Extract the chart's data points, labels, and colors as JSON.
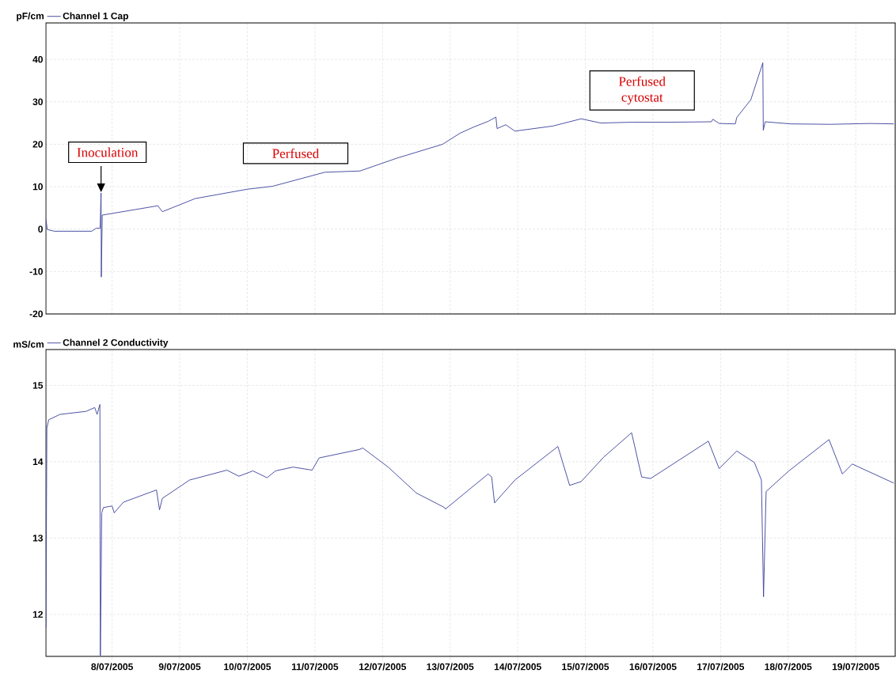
{
  "chart_data": [
    {
      "type": "line",
      "ylabel": "pF/cm",
      "legend": "top left",
      "grid": true,
      "tick_labels": "y",
      "xlim": [
        "2005-07-07T00:30",
        "2005-07-19T14:00"
      ],
      "ylim": [
        -20,
        48.6
      ],
      "yticks": [
        -20,
        -10,
        0,
        10,
        20,
        30,
        40
      ],
      "xticks": [
        {
          "value": "2005-07-08",
          "label": null
        },
        {
          "value": "2005-07-09",
          "label": null
        },
        {
          "value": "2005-07-10",
          "label": null
        },
        {
          "value": "2005-07-11",
          "label": null
        },
        {
          "value": "2005-07-12",
          "label": null
        },
        {
          "value": "2005-07-13",
          "label": null
        },
        {
          "value": "2005-07-14",
          "label": null
        },
        {
          "value": "2005-07-15",
          "label": null
        },
        {
          "value": "2005-07-16",
          "label": null
        },
        {
          "value": "2005-07-17",
          "label": null
        },
        {
          "value": "2005-07-18",
          "label": null
        },
        {
          "value": "2005-07-19",
          "label": null
        }
      ],
      "x": [
        "2005-07-07T00:30",
        "2005-07-07T01:00",
        "2005-07-07T03:30",
        "2005-07-07T16:45",
        "2005-07-07T18:20",
        "2005-07-07T19:45",
        "2005-07-07T20:05",
        "2005-07-07T20:10",
        "2005-07-07T20:30",
        "2005-07-08T16:15",
        "2005-07-08T17:50",
        "2005-07-09T05:30",
        "2005-07-10T00:00",
        "2005-07-10T09:00",
        "2005-07-11T03:30",
        "2005-07-11T16:00",
        "2005-07-12T05:00",
        "2005-07-12T21:20",
        "2005-07-13T03:30",
        "2005-07-13T08:30",
        "2005-07-13T13:30",
        "2005-07-13T16:15",
        "2005-07-13T16:40",
        "2005-07-13T19:45",
        "2005-07-13T23:00",
        "2005-07-14T12:30",
        "2005-07-14T22:30",
        "2005-07-15T05:30",
        "2005-07-15T16:45",
        "2005-07-16T06:45",
        "2005-07-16T20:45",
        "2005-07-16T21:15",
        "2005-07-16T23:30",
        "2005-07-17T05:15",
        "2005-07-17T05:45",
        "2005-07-17T10:45",
        "2005-07-17T15:00",
        "2005-07-17T15:10",
        "2005-07-17T15:50",
        "2005-07-18T00:50",
        "2005-07-18T15:00",
        "2005-07-19T05:00",
        "2005-07-19T13:30"
      ],
      "series": [
        {
          "name": "Channel 1 Cap",
          "color": "#3a3f9a",
          "values": [
            2.3,
            -0.1,
            -0.5,
            -0.5,
            0.2,
            0.2,
            8.5,
            -11.3,
            3.3,
            5.5,
            4.1,
            7.2,
            9.4,
            10.1,
            13.4,
            13.7,
            16.7,
            20.0,
            22.6,
            24.1,
            25.4,
            26.4,
            23.7,
            24.6,
            23.1,
            24.3,
            26.0,
            25.0,
            25.2,
            25.2,
            25.3,
            25.9,
            24.9,
            24.8,
            26.3,
            30.5,
            39.2,
            23.3,
            25.3,
            24.8,
            24.7,
            24.9,
            24.8
          ]
        }
      ],
      "annotations": [
        {
          "text": "Inoculation",
          "x": "2005-07-07T20:05",
          "y": 8.5
        },
        "Perfused",
        "Perfused cytostat"
      ]
    },
    {
      "type": "line",
      "ylabel": "mS/cm",
      "legend": "top left",
      "grid": true,
      "xlim": [
        "2005-07-07T00:30",
        "2005-07-19T14:00"
      ],
      "ylim": [
        11.45,
        15.47
      ],
      "yticks": [
        12,
        13,
        14,
        15
      ],
      "xticks": [
        {
          "value": "2005-07-08",
          "label": "8/07/2005"
        },
        {
          "value": "2005-07-09",
          "label": "9/07/2005"
        },
        {
          "value": "2005-07-10",
          "label": "10/07/2005"
        },
        {
          "value": "2005-07-11",
          "label": "11/07/2005"
        },
        {
          "value": "2005-07-12",
          "label": "12/07/2005"
        },
        {
          "value": "2005-07-13",
          "label": "13/07/2005"
        },
        {
          "value": "2005-07-14",
          "label": "14/07/2005"
        },
        {
          "value": "2005-07-15",
          "label": "15/07/2005"
        },
        {
          "value": "2005-07-16",
          "label": "16/07/2005"
        },
        {
          "value": "2005-07-17",
          "label": "17/07/2005"
        },
        {
          "value": "2005-07-18",
          "label": "18/07/2005"
        },
        {
          "value": "2005-07-19",
          "label": "19/07/2005"
        }
      ],
      "x": [
        "2005-07-07T00:30",
        "2005-07-07T00:50",
        "2005-07-07T01:30",
        "2005-07-07T05:30",
        "2005-07-07T14:45",
        "2005-07-07T17:50",
        "2005-07-07T18:40",
        "2005-07-07T19:40",
        "2005-07-07T19:50",
        "2005-07-07T20:20",
        "2005-07-07T20:55",
        "2005-07-08T00:00",
        "2005-07-08T00:45",
        "2005-07-08T04:00",
        "2005-07-08T15:45",
        "2005-07-08T16:50",
        "2005-07-08T17:50",
        "2005-07-09T03:30",
        "2005-07-09T16:45",
        "2005-07-09T21:00",
        "2005-07-10T02:00",
        "2005-07-10T07:00",
        "2005-07-10T10:00",
        "2005-07-10T16:15",
        "2005-07-10T23:00",
        "2005-07-11T01:30",
        "2005-07-11T15:45",
        "2005-07-11T17:00",
        "2005-07-12T02:00",
        "2005-07-12T12:00",
        "2005-07-12T22:00",
        "2005-07-12T22:20",
        "2005-07-13T13:30",
        "2005-07-13T14:45",
        "2005-07-13T15:45",
        "2005-07-13T23:00",
        "2005-07-14T14:15",
        "2005-07-14T18:25",
        "2005-07-14T22:30",
        "2005-07-15T06:30",
        "2005-07-15T16:25",
        "2005-07-15T20:00",
        "2005-07-15T23:10",
        "2005-07-16T19:40",
        "2005-07-16T23:30",
        "2005-07-17T05:45",
        "2005-07-17T12:00",
        "2005-07-17T14:30",
        "2005-07-17T15:15",
        "2005-07-17T16:10",
        "2005-07-18T00:15",
        "2005-07-18T14:30",
        "2005-07-18T19:15",
        "2005-07-18T22:45",
        "2005-07-19T13:30"
      ],
      "series": [
        {
          "name": "Channel 2 Conductivity",
          "color": "#3a3f9a",
          "values": [
            11.83,
            14.44,
            14.55,
            14.62,
            14.66,
            14.71,
            14.62,
            14.75,
            11.46,
            13.33,
            13.4,
            13.42,
            13.33,
            13.47,
            13.63,
            13.37,
            13.52,
            13.76,
            13.89,
            13.81,
            13.88,
            13.79,
            13.88,
            13.93,
            13.89,
            14.05,
            14.16,
            14.18,
            13.93,
            13.59,
            13.4,
            13.38,
            13.84,
            13.8,
            13.46,
            13.76,
            14.2,
            13.69,
            13.74,
            14.06,
            14.38,
            13.8,
            13.78,
            14.27,
            13.91,
            14.14,
            13.99,
            13.76,
            12.23,
            13.61,
            13.88,
            14.29,
            13.84,
            13.97,
            13.72
          ]
        }
      ]
    }
  ]
}
